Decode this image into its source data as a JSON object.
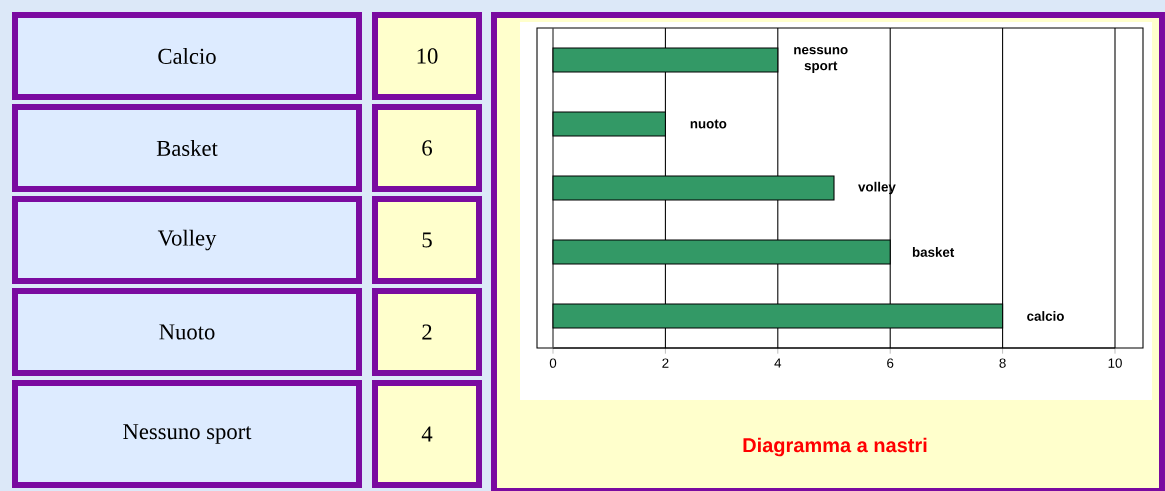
{
  "chart_data": [
    {
      "type": "other",
      "categories": [
        "Calcio",
        "Basket",
        "Volley",
        "Nuoto",
        "Nessuno sport"
      ],
      "values": [
        10,
        6,
        5,
        2,
        4
      ],
      "data_labels": true
    },
    {
      "type": "bar",
      "orientation": "horizontal",
      "title": "Diagramma a nastri",
      "categories": [
        "nessuno sport",
        "nuoto",
        "volley",
        "basket",
        "calcio"
      ],
      "values": [
        4,
        2,
        5,
        6,
        8
      ],
      "color": "#339966",
      "xlim": [
        0,
        10
      ],
      "xticks": [
        0,
        2,
        4,
        6,
        8,
        10
      ],
      "grid": "x",
      "tick_labels": "x"
    }
  ]
}
